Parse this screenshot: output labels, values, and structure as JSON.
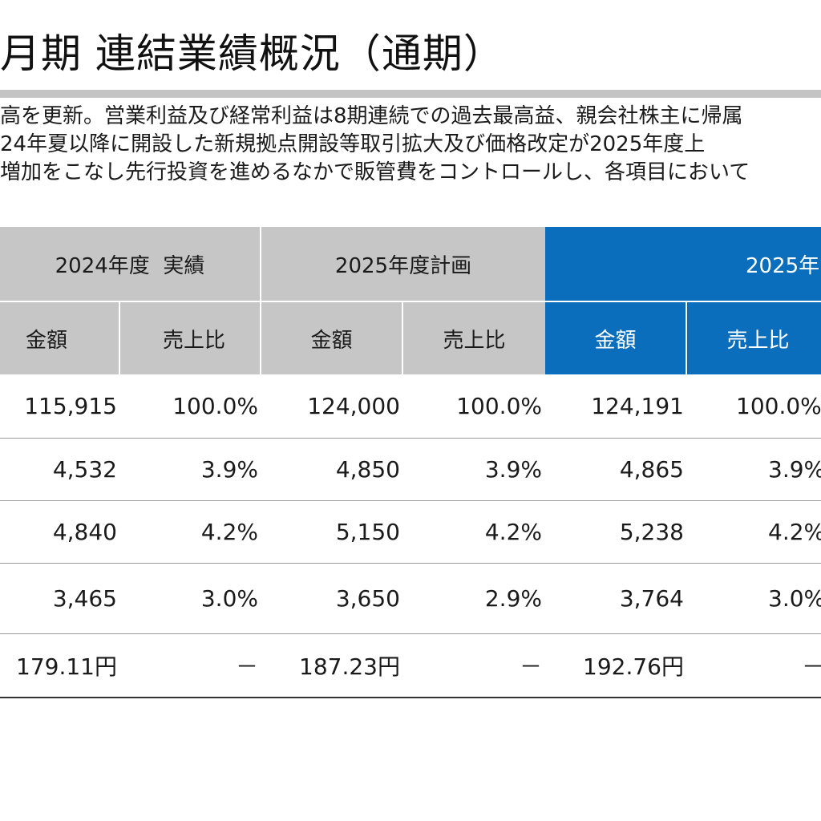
{
  "title": "月期 連結業績概況（通期）",
  "summary_lines": [
    "高を更新。営業利益及び経常利益は8期連続での過去最高益、親会社株主に帰属",
    "24年夏以降に開設した新規拠点開設等取引拡大及び価格改定が2025年度上",
    "増加をこなし先行投資を進めるなかで販管費をコントロールし、各項目において"
  ],
  "table": {
    "groups": [
      {
        "label": "2024年度  実績"
      },
      {
        "label": "2025年度計画"
      },
      {
        "label": "2025年"
      }
    ],
    "subheaders": [
      "金額",
      "売上比",
      "金額",
      "売上比",
      "金額",
      "売上比"
    ],
    "rows": [
      [
        "115,915",
        "100.0%",
        "124,000",
        "100.0%",
        "124,191",
        "100.0%"
      ],
      [
        "4,532",
        "3.9%",
        "4,850",
        "3.9%",
        "4,865",
        "3.9%"
      ],
      [
        "4,840",
        "4.2%",
        "5,150",
        "4.2%",
        "5,238",
        "4.2%"
      ],
      [
        "3,465",
        "3.0%",
        "3,650",
        "2.9%",
        "3,764",
        "3.0%"
      ],
      [
        "179.11円",
        "－",
        "187.23円",
        "－",
        "192.76円",
        "－"
      ]
    ]
  },
  "colors": {
    "header_gray": "#c6c6c6",
    "header_blue": "#0a6ebd",
    "title_rule": "#c4c4c4"
  }
}
